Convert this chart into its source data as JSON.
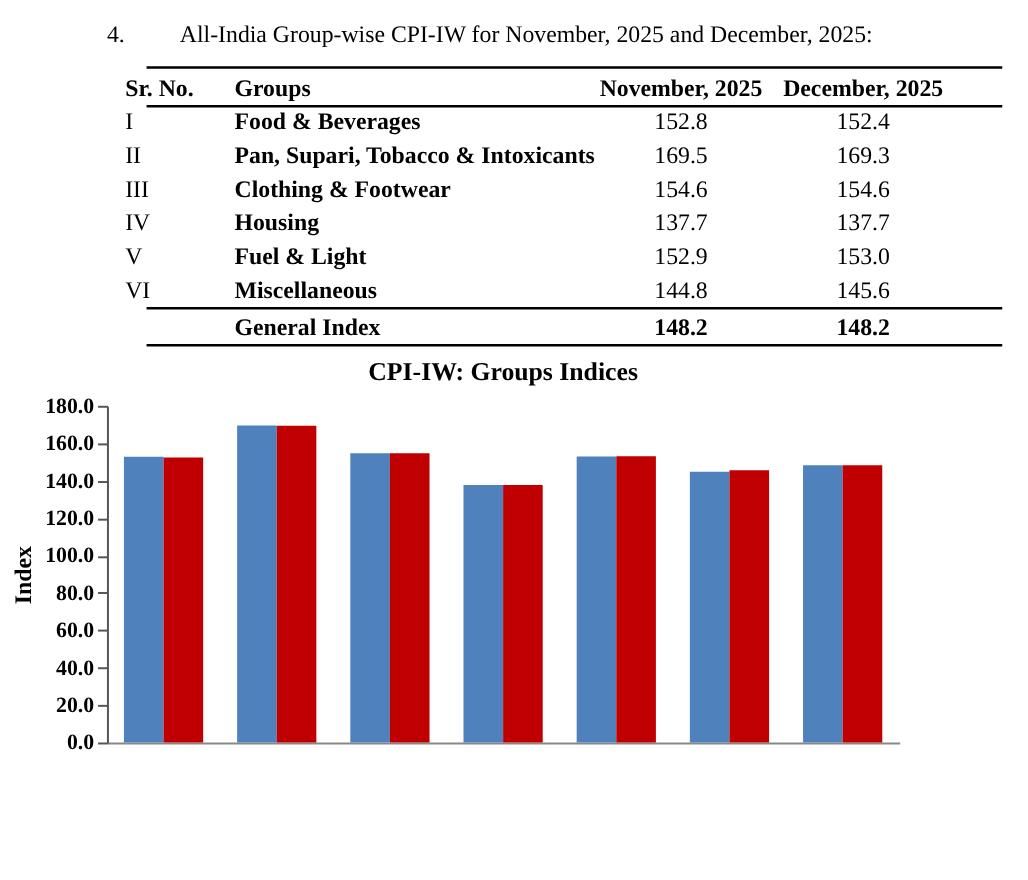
{
  "chart_data": [
    {
      "type": "other",
      "annotations": [
        "4.",
        "All-India Group-wise CPI-IW for November, 2025 and December, 2025:",
        "Sr. No.",
        "Groups",
        "I",
        "II",
        "III",
        "IV",
        "V",
        "VI"
      ],
      "categories": [
        "Food & Beverages",
        "Pan, Supari, Tobacco & Intoxicants",
        "Clothing & Footwear",
        "Housing",
        "Fuel & Light",
        "Miscellaneous",
        "General Index"
      ],
      "series": [
        {
          "name": "November, 2025",
          "values": [
            152.8,
            169.5,
            154.6,
            137.7,
            152.9,
            144.8,
            148.2
          ],
          "value_labels": [
            "152.8",
            "169.5",
            "154.6",
            "137.7",
            "152.9",
            "144.8",
            "148.2"
          ]
        },
        {
          "name": "December, 2025",
          "values": [
            152.4,
            169.3,
            154.6,
            137.7,
            153.0,
            145.6,
            148.2
          ],
          "value_labels": [
            "152.4",
            "169.3",
            "154.6",
            "137.7",
            "153.0",
            "145.6",
            "148.2"
          ]
        }
      ]
    },
    {
      "type": "bar",
      "title": "CPI-IW: Groups Indices",
      "ylabel": "Index",
      "categories": [
        null,
        null,
        null,
        null,
        null,
        null,
        null
      ],
      "series": [
        {
          "color": "#4f81bd",
          "values": [
            152.8,
            169.5,
            154.6,
            137.7,
            152.9,
            144.8,
            148.2
          ]
        },
        {
          "color": "#c00000",
          "values": [
            152.4,
            169.3,
            154.6,
            137.7,
            153.0,
            145.6,
            148.2
          ]
        }
      ],
      "ylim": [
        0,
        180
      ],
      "yticks": [
        {
          "value": 0,
          "label": "0.0"
        },
        {
          "value": 20,
          "label": "20.0"
        },
        {
          "value": 40,
          "label": "40.0"
        },
        {
          "value": 60,
          "label": "60.0"
        },
        {
          "value": 80,
          "label": "80.0"
        },
        {
          "value": 100,
          "label": "100.0"
        },
        {
          "value": 120,
          "label": "120.0"
        },
        {
          "value": 140,
          "label": "140.0"
        },
        {
          "value": 160,
          "label": "160.0"
        },
        {
          "value": 180,
          "label": "180.0"
        }
      ],
      "tick_labels": "y",
      "grid": false,
      "legend": false
    }
  ]
}
